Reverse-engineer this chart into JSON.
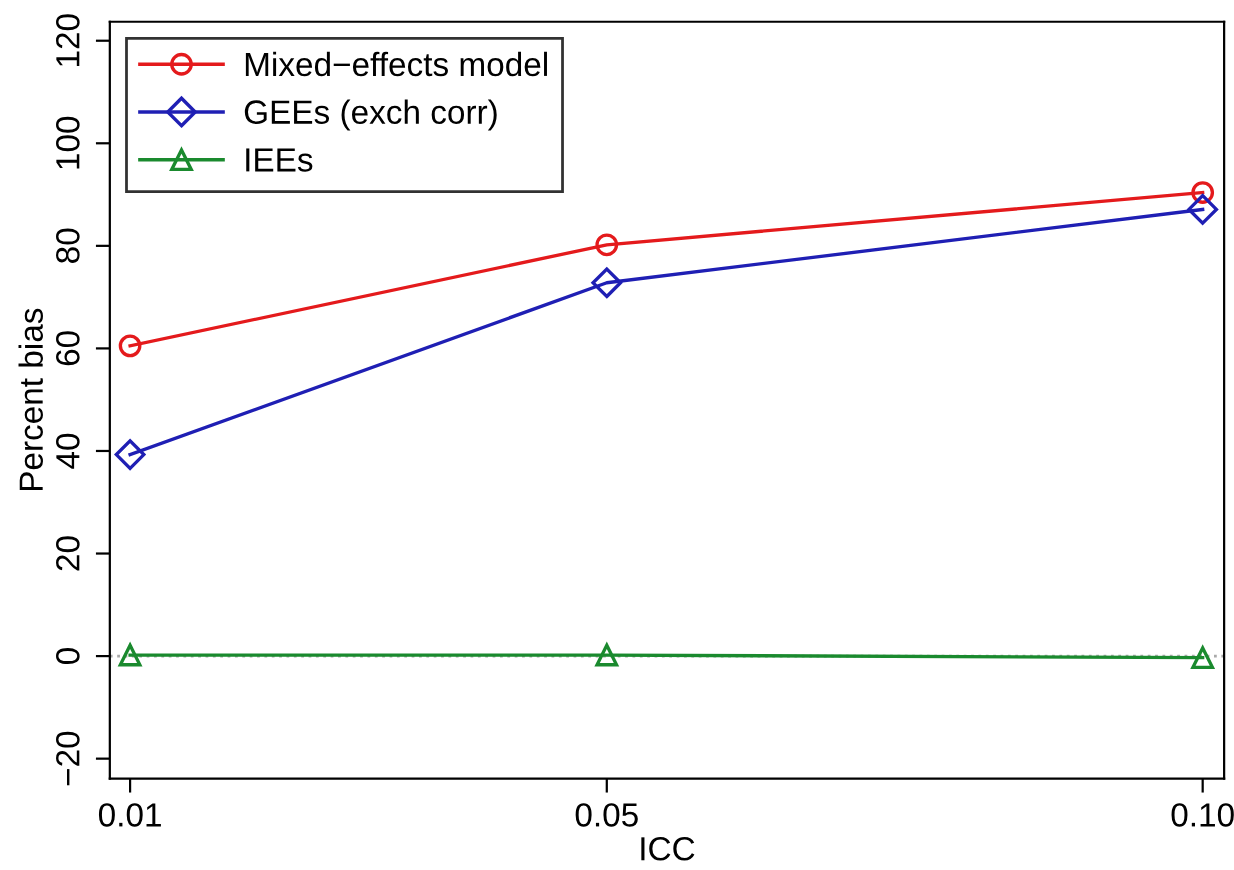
{
  "chart_data": {
    "type": "line",
    "xlabel": "ICC",
    "ylabel": "Percent bias",
    "x": [
      0.01,
      0.05,
      0.1
    ],
    "series": [
      {
        "name": "Mixed−effects model",
        "color": "#e41a1c",
        "values": [
          60.5,
          80.2,
          90.4
        ],
        "marker": "circle"
      },
      {
        "name": "GEEs (exch corr)",
        "color": "#1f1fb4",
        "values": [
          39.3,
          72.8,
          87.1
        ],
        "marker": "diamond"
      },
      {
        "name": "IEEs",
        "color": "#1a8a2e",
        "values": [
          0.2,
          0.2,
          -0.3
        ],
        "marker": "triangle"
      }
    ],
    "xlim": [
      0.0083,
      0.1018
    ],
    "ylim": [
      -23.9,
      123.7
    ],
    "xticks": [
      0.01,
      0.05,
      {
        "value": 0.1,
        "label": "0.10"
      }
    ],
    "yticks": [
      {
        "value": -20,
        "label": "−20"
      },
      0,
      20,
      40,
      60,
      80,
      100,
      120
    ],
    "ref_lines": [
      {
        "axis": "y",
        "value": 0,
        "color": "#aaaaaa",
        "line_style": "dotted"
      }
    ],
    "legend": "top left",
    "grid": false,
    "line_style": "solid"
  }
}
